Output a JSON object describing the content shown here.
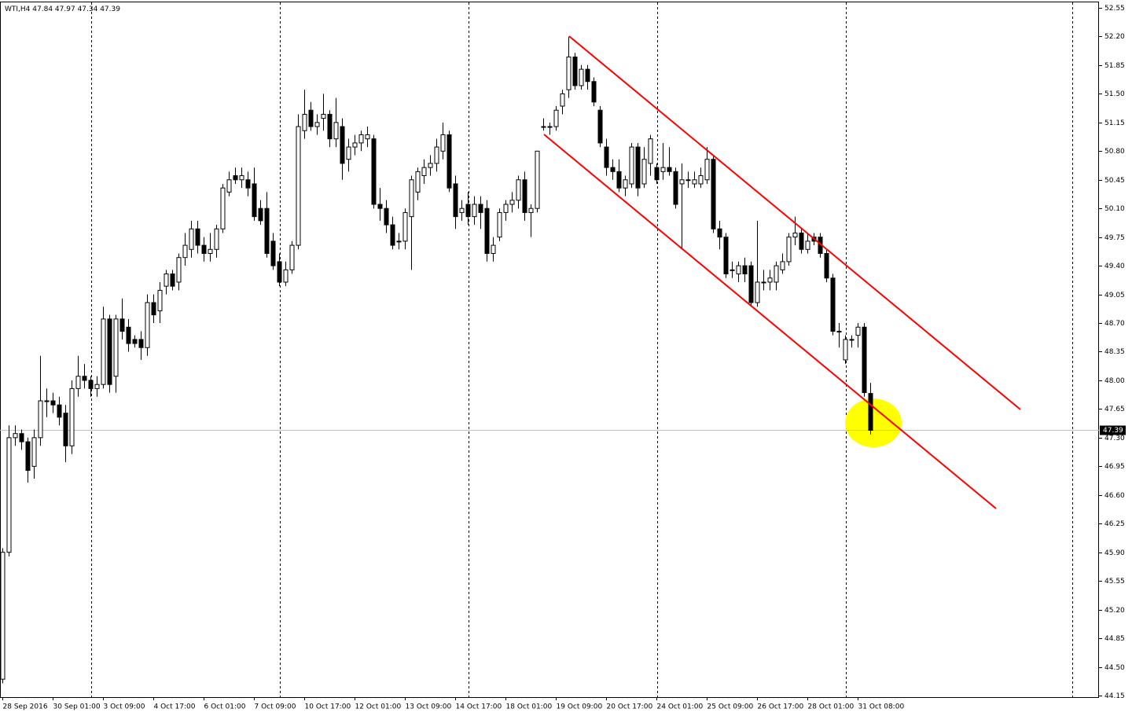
{
  "chart_data": {
    "type": "candlestick",
    "title": "WTI,H4",
    "x": [
      "28 Sep 2016",
      null,
      null,
      null,
      null,
      null,
      null,
      null,
      "30 Sep 01:00",
      null,
      null,
      null,
      null,
      null,
      null,
      null,
      "3 Oct 09:00",
      null,
      null,
      null,
      null,
      null,
      null,
      null,
      "4 Oct 17:00",
      null,
      null,
      null,
      null,
      null,
      null,
      null,
      "6 Oct 01:00",
      null,
      null,
      null,
      null,
      null,
      null,
      null,
      "7 Oct 09:00",
      null,
      null,
      null,
      null,
      null,
      null,
      null,
      "10 Oct 17:00",
      null,
      null,
      null,
      null,
      null,
      null,
      null,
      "12 Oct 01:00",
      null,
      null,
      null,
      null,
      null,
      null,
      null,
      "13 Oct 09:00",
      null,
      null,
      null,
      null,
      null,
      null,
      null,
      "14 Oct 17:00",
      null,
      null,
      null,
      null,
      null,
      null,
      null,
      "18 Oct 01:00",
      null,
      null,
      null,
      null,
      null,
      null,
      null,
      "19 Oct 09:00",
      null,
      null,
      null,
      null,
      null,
      null,
      null,
      "20 Oct 17:00",
      null,
      null,
      null,
      null,
      null,
      null,
      null,
      "24 Oct 01:00",
      null,
      null,
      null,
      null,
      null,
      null,
      null,
      "25 Oct 09:00",
      null,
      null,
      null,
      null,
      null,
      null,
      null,
      "26 Oct 17:00",
      null,
      null,
      null,
      null,
      null,
      null,
      null,
      "28 Oct 01:00",
      null,
      null,
      null,
      null,
      null,
      null,
      null,
      "31 Oct 08:00",
      null,
      null
    ],
    "open": [
      44.35,
      45.9,
      47.3,
      47.35,
      47.25,
      46.95,
      47.3,
      47.75,
      47.75,
      47.7,
      47.6,
      47.2,
      47.9,
      48.05,
      48.0,
      47.9,
      47.95,
      48.75,
      48.05,
      48.75,
      48.65,
      48.5,
      48.5,
      48.4,
      48.95,
      48.85,
      49.15,
      49.3,
      49.2,
      49.5,
      49.6,
      49.85,
      49.65,
      49.55,
      49.6,
      49.85,
      50.3,
      50.5,
      50.45,
      50.45,
      50.4,
      50.1,
      50.1,
      49.7,
      49.45,
      49.2,
      49.35,
      49.65,
      51.05,
      51.3,
      51.1,
      51.2,
      51.25,
      50.95,
      51.1,
      50.7,
      50.85,
      50.9,
      50.95,
      50.95,
      50.15,
      50.1,
      49.9,
      49.7,
      49.7,
      50.0,
      50.3,
      50.5,
      50.6,
      50.65,
      50.8,
      51.0,
      50.4,
      50.05,
      50.15,
      50.0,
      50.15,
      50.1,
      49.55,
      49.75,
      50.05,
      50.15,
      50.2,
      50.45,
      50.05,
      50.1,
      51.1,
      51.1,
      51.1,
      51.35,
      51.55,
      51.95,
      51.6,
      51.8,
      51.65,
      51.3,
      50.85,
      50.6,
      50.55,
      50.35,
      50.4,
      50.85,
      50.4,
      50.65,
      50.6,
      50.55,
      50.6,
      50.55,
      50.4,
      50.45,
      50.4,
      50.4,
      50.45,
      50.7,
      49.85,
      49.75,
      49.35,
      49.3,
      49.4,
      49.4,
      48.95,
      49.2,
      49.2,
      49.2,
      49.35,
      49.45,
      49.75,
      49.8,
      49.6,
      49.75,
      49.75,
      49.55,
      49.25,
      48.6,
      48.25,
      48.5,
      48.55,
      48.65,
      47.84
    ],
    "high": [
      45.95,
      47.45,
      47.45,
      47.4,
      47.3,
      47.4,
      48.3,
      47.9,
      47.85,
      47.8,
      47.7,
      48.0,
      48.3,
      48.2,
      48.05,
      48.05,
      48.9,
      48.8,
      48.8,
      49.0,
      48.75,
      48.55,
      48.6,
      49.05,
      49.05,
      49.2,
      49.35,
      49.35,
      49.55,
      49.8,
      49.95,
      49.95,
      49.75,
      49.8,
      49.9,
      50.4,
      50.55,
      50.6,
      50.6,
      50.55,
      50.6,
      50.2,
      50.3,
      49.8,
      49.55,
      49.45,
      49.7,
      51.25,
      51.55,
      51.4,
      51.25,
      51.5,
      51.3,
      51.45,
      51.2,
      50.95,
      51.0,
      51.05,
      51.1,
      51.0,
      50.35,
      50.2,
      50.0,
      49.8,
      50.1,
      50.5,
      50.6,
      50.7,
      50.75,
      50.95,
      51.15,
      51.05,
      50.5,
      50.2,
      50.3,
      50.25,
      50.25,
      50.2,
      49.75,
      50.1,
      50.2,
      50.3,
      50.5,
      50.55,
      50.15,
      50.8,
      51.2,
      51.15,
      51.35,
      51.55,
      52.2,
      52.0,
      51.85,
      51.85,
      51.7,
      51.35,
      50.95,
      50.7,
      50.7,
      50.5,
      50.9,
      50.9,
      50.85,
      51.0,
      50.65,
      50.9,
      50.85,
      50.6,
      50.65,
      50.55,
      50.55,
      50.6,
      50.85,
      50.75,
      49.95,
      49.8,
      49.45,
      49.45,
      49.5,
      49.45,
      49.95,
      49.35,
      49.35,
      49.45,
      49.55,
      49.8,
      50.0,
      49.85,
      49.8,
      49.8,
      49.8,
      49.6,
      49.3,
      48.7,
      48.55,
      48.55,
      48.7,
      48.7,
      47.97
    ],
    "low": [
      44.3,
      45.85,
      47.2,
      47.15,
      46.75,
      46.8,
      47.2,
      47.55,
      47.6,
      47.45,
      47.0,
      47.1,
      47.8,
      47.9,
      47.8,
      47.8,
      47.9,
      47.85,
      47.85,
      48.5,
      48.35,
      48.4,
      48.25,
      48.3,
      48.7,
      48.7,
      49.05,
      49.1,
      49.1,
      49.4,
      49.5,
      49.55,
      49.45,
      49.45,
      49.5,
      49.8,
      50.25,
      50.4,
      50.35,
      50.25,
      49.95,
      49.9,
      49.5,
      49.35,
      49.15,
      49.15,
      49.3,
      49.6,
      50.95,
      51.05,
      51.0,
      51.05,
      50.85,
      50.85,
      50.45,
      50.55,
      50.75,
      50.8,
      50.85,
      50.1,
      49.95,
      49.8,
      49.6,
      49.6,
      49.6,
      49.35,
      50.2,
      50.4,
      50.5,
      50.55,
      50.7,
      50.3,
      49.85,
      49.95,
      49.9,
      49.9,
      49.85,
      49.45,
      49.45,
      49.7,
      49.95,
      50.05,
      50.1,
      49.95,
      49.75,
      50.05,
      51.05,
      51.0,
      51.05,
      51.25,
      51.45,
      51.55,
      51.55,
      51.55,
      51.35,
      50.85,
      50.5,
      50.45,
      50.3,
      50.25,
      50.35,
      50.25,
      50.35,
      50.5,
      50.4,
      50.45,
      50.5,
      50.1,
      49.6,
      50.35,
      50.35,
      50.35,
      50.4,
      49.8,
      49.6,
      49.25,
      49.25,
      49.2,
      49.2,
      48.9,
      48.9,
      49.1,
      49.1,
      49.1,
      49.3,
      49.4,
      49.65,
      49.55,
      49.55,
      49.65,
      49.5,
      49.2,
      48.55,
      48.4,
      48.2,
      48.4,
      48.4,
      47.8,
      47.34
    ],
    "close": [
      45.9,
      47.3,
      47.35,
      47.25,
      46.9,
      47.3,
      47.75,
      47.75,
      47.7,
      47.55,
      47.2,
      47.9,
      48.05,
      48.0,
      47.9,
      47.95,
      48.75,
      47.95,
      48.75,
      48.6,
      48.45,
      48.45,
      48.4,
      48.95,
      48.8,
      49.1,
      49.3,
      49.15,
      49.5,
      49.65,
      49.85,
      49.65,
      49.55,
      49.6,
      49.85,
      50.35,
      50.45,
      50.45,
      50.5,
      50.35,
      50.0,
      49.95,
      49.55,
      49.4,
      49.2,
      49.35,
      49.65,
      51.1,
      51.25,
      51.1,
      51.15,
      51.25,
      50.95,
      51.15,
      50.65,
      50.85,
      50.9,
      51.0,
      51.0,
      50.15,
      50.1,
      49.9,
      49.65,
      49.7,
      50.05,
      50.45,
      50.55,
      50.6,
      50.65,
      50.85,
      51.0,
      50.35,
      50.0,
      50.1,
      50.0,
      50.15,
      50.05,
      49.55,
      49.65,
      50.05,
      50.15,
      50.2,
      50.45,
      50.05,
      50.1,
      50.8,
      51.1,
      51.1,
      51.3,
      51.5,
      51.95,
      51.6,
      51.8,
      51.65,
      51.4,
      50.9,
      50.6,
      50.55,
      50.35,
      50.45,
      50.85,
      50.35,
      50.7,
      50.95,
      50.45,
      50.6,
      50.55,
      50.15,
      50.45,
      50.45,
      50.45,
      50.5,
      50.7,
      49.85,
      49.75,
      49.3,
      49.35,
      49.4,
      49.3,
      48.95,
      49.2,
      49.2,
      49.25,
      49.4,
      49.45,
      49.75,
      49.8,
      49.6,
      49.7,
      49.7,
      49.55,
      49.25,
      48.6,
      48.6,
      48.5,
      48.5,
      48.65,
      47.85,
      47.39
    ],
    "up_color": "#ffffff",
    "down_color": "#000000",
    "ylim": [
      44.15,
      52.55
    ],
    "yticks": [
      52.55,
      {
        "value": 52.2,
        "label": "52.20"
      },
      51.85,
      {
        "value": 51.5,
        "label": "51.50"
      },
      51.15,
      {
        "value": 50.8,
        "label": "50.80"
      },
      50.45,
      {
        "value": 50.1,
        "label": "50.10"
      },
      49.75,
      {
        "value": 49.4,
        "label": "49.40"
      },
      49.05,
      {
        "value": 48.7,
        "label": "48.70"
      },
      48.35,
      {
        "value": 48,
        "label": "48.00"
      },
      47.65,
      {
        "value": 47.3,
        "label": "47.30"
      },
      46.95,
      {
        "value": 46.6,
        "label": "46.60"
      },
      46.25,
      {
        "value": 45.9,
        "label": "45.90"
      },
      45.55,
      {
        "value": 45.2,
        "label": "45.20"
      },
      44.85,
      {
        "value": 44.5,
        "label": "44.50"
      },
      44.15
    ]
  }
}
